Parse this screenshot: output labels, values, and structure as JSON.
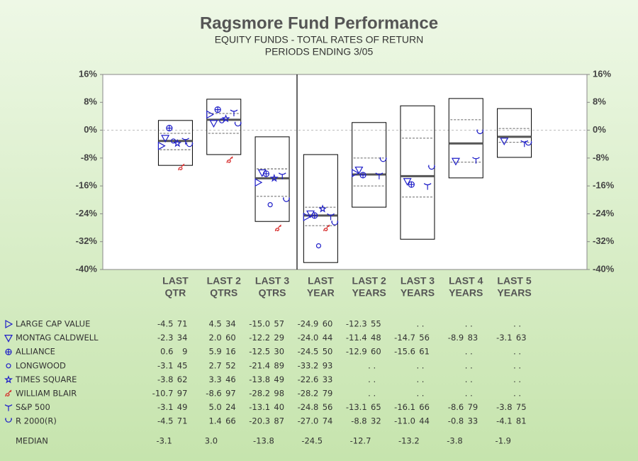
{
  "chart_data": {
    "type": "floating-box",
    "title": "Ragsmore Fund Performance",
    "subtitle": [
      "EQUITY FUNDS - TOTAL RATES OF RETURN",
      "PERIODS ENDING 3/05"
    ],
    "categories": [
      [
        "LAST",
        "QTR"
      ],
      [
        "LAST 2",
        "QTRS"
      ],
      [
        "LAST 3",
        "QTRS"
      ],
      [
        "LAST",
        "YEAR"
      ],
      [
        "LAST 2",
        "YEARS"
      ],
      [
        "LAST 3",
        "YEARS"
      ],
      [
        "LAST 4",
        "YEARS"
      ],
      [
        "LAST 5",
        "YEARS"
      ]
    ],
    "ylim": [
      -40,
      16
    ],
    "yticks": [
      {
        "value": 16,
        "label": "16%"
      },
      {
        "value": 8,
        "label": "8%"
      },
      {
        "value": 0,
        "label": "0%"
      },
      {
        "value": -8,
        "label": "-8%"
      },
      {
        "value": -16,
        "label": "-16%"
      },
      {
        "value": -24,
        "label": "-24%"
      },
      {
        "value": -32,
        "label": "-32%"
      },
      {
        "value": -40,
        "label": "-40%"
      }
    ],
    "y2ticks_mirror": true,
    "zero_line": true,
    "box_high": [
      2.8,
      8.9,
      -1.9,
      -7.0,
      2.2,
      7.0,
      9.1,
      6.2
    ],
    "box_q3": [
      -0.9,
      4.8,
      -11.1,
      -22.1,
      -8.0,
      -2.3,
      3.0,
      0.5
    ],
    "box_q1": [
      -5.6,
      -0.9,
      -19.0,
      -27.4,
      -16.0,
      -19.2,
      -9.2,
      -3.5
    ],
    "box_low": [
      -10.1,
      -7.0,
      -26.2,
      -38.0,
      -22.1,
      -31.3,
      -13.7,
      -7.8
    ],
    "median_name": "MEDIAN",
    "medians": [
      -3.1,
      3.0,
      -13.8,
      -24.5,
      -12.7,
      -13.2,
      -3.8,
      -1.9
    ],
    "median_labels": [
      "-3.1",
      "3.0",
      "-13.8",
      "-24.5",
      "-12.7",
      "-13.2",
      "-3.8",
      "-1.9"
    ],
    "missing_label": ". .",
    "series": [
      {
        "name": "LARGE CAP VALUE",
        "marker": "triangle-right",
        "color": "#1f1fc8",
        "values": [
          -4.5,
          4.5,
          -15.0,
          -24.9,
          -12.3,
          null,
          null,
          null
        ],
        "value_labels": [
          "-4.5",
          "4.5",
          "-15.0",
          "-24.9",
          "-12.3",
          null,
          null,
          null
        ],
        "ranks": [
          71,
          34,
          57,
          60,
          55,
          null,
          null,
          null
        ]
      },
      {
        "name": "MONTAG CALDWELL",
        "marker": "triangle-down",
        "color": "#1f1fc8",
        "values": [
          -2.3,
          2.0,
          -12.2,
          -24.0,
          -11.4,
          -14.7,
          -8.9,
          -3.1
        ],
        "value_labels": [
          "-2.3",
          "2.0",
          "-12.2",
          "-24.0",
          "-11.4",
          "-14.7",
          "-8.9",
          "-3.1"
        ],
        "ranks": [
          34,
          60,
          29,
          44,
          48,
          56,
          83,
          63
        ]
      },
      {
        "name": "ALLIANCE",
        "marker": "circle-plus",
        "color": "#1f1fc8",
        "values": [
          0.6,
          5.9,
          -12.5,
          -24.5,
          -12.9,
          -15.6,
          null,
          null
        ],
        "value_labels": [
          "0.6",
          "5.9",
          "-12.5",
          "-24.5",
          "-12.9",
          "-15.6",
          null,
          null
        ],
        "ranks": [
          9,
          16,
          30,
          50,
          60,
          61,
          null,
          null
        ]
      },
      {
        "name": "LONGWOOD",
        "marker": "circle",
        "color": "#1f1fc8",
        "values": [
          -3.1,
          2.7,
          -21.4,
          -33.2,
          null,
          null,
          null,
          null
        ],
        "value_labels": [
          "-3.1",
          "2.7",
          "-21.4",
          "-33.2",
          null,
          null,
          null,
          null
        ],
        "ranks": [
          45,
          52,
          89,
          93,
          null,
          null,
          null,
          null
        ]
      },
      {
        "name": "TIMES SQUARE",
        "marker": "star",
        "color": "#1f1fc8",
        "values": [
          -3.8,
          3.3,
          -13.8,
          -22.6,
          null,
          null,
          null,
          null
        ],
        "value_labels": [
          "-3.8",
          "3.3",
          "-13.8",
          "-22.6",
          null,
          null,
          null,
          null
        ],
        "ranks": [
          62,
          46,
          49,
          33,
          null,
          null,
          null,
          null
        ]
      },
      {
        "name": "WILLIAM BLAIR",
        "marker": "bird",
        "color": "#d42020",
        "values": [
          -10.7,
          -8.6,
          -28.2,
          -28.2,
          null,
          null,
          null,
          null
        ],
        "value_labels": [
          "-10.7",
          "-8.6",
          "-28.2",
          "-28.2",
          null,
          null,
          null,
          null
        ],
        "ranks": [
          97,
          97,
          98,
          79,
          null,
          null,
          null,
          null
        ]
      },
      {
        "name": "S&P 500",
        "marker": "fork",
        "color": "#1f1fc8",
        "values": [
          -3.1,
          5.0,
          -13.1,
          -24.8,
          -13.1,
          -16.1,
          -8.6,
          -3.8
        ],
        "value_labels": [
          "-3.1",
          "5.0",
          "-13.1",
          "-24.8",
          "-13.1",
          "-16.1",
          "-8.6",
          "-3.8"
        ],
        "ranks": [
          49,
          24,
          40,
          56,
          65,
          66,
          79,
          75
        ]
      },
      {
        "name": "R 2000(R)",
        "marker": "cup",
        "color": "#1f1fc8",
        "values": [
          -4.5,
          1.4,
          -20.3,
          -27.0,
          -8.8,
          -11.0,
          -0.8,
          -4.1
        ],
        "value_labels": [
          "-4.5",
          "1.4",
          "-20.3",
          "-27.0",
          "-8.8",
          "-11.0",
          "-0.8",
          "-4.1"
        ],
        "ranks": [
          71,
          66,
          87,
          74,
          32,
          44,
          33,
          81
        ]
      }
    ]
  }
}
